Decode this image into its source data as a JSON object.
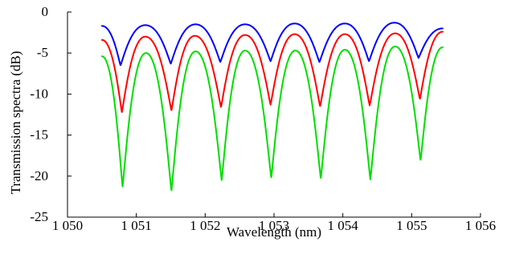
{
  "chart_data": {
    "type": "line",
    "title": "",
    "xlabel": "Wavelength (nm)",
    "ylabel": "Transmission spectra (dB)",
    "xlim": [
      1050,
      1056
    ],
    "ylim": [
      -25,
      0
    ],
    "x_ticks": [
      1050,
      1051,
      1052,
      1053,
      1054,
      1055,
      1056
    ],
    "x_tick_labels": [
      "1 050",
      "1 051",
      "1 052",
      "1 053",
      "1 054",
      "1 055",
      "1 056"
    ],
    "y_ticks": [
      0,
      -5,
      -10,
      -15,
      -20,
      -25
    ],
    "y_tick_labels": [
      "0",
      "-5",
      "-10",
      "-15",
      "-20",
      "-25"
    ],
    "grid": false,
    "legend": "none",
    "series": [
      {
        "color": "#0000ff",
        "x_start": 1050.5,
        "x_end": 1055.45,
        "minima": [
          {
            "x": 1050.77,
            "y": -6.5
          },
          {
            "x": 1051.5,
            "y": -6.3
          },
          {
            "x": 1052.22,
            "y": -6.1
          },
          {
            "x": 1052.95,
            "y": -6.0
          },
          {
            "x": 1053.66,
            "y": -6.1
          },
          {
            "x": 1054.38,
            "y": -6.0
          },
          {
            "x": 1055.1,
            "y": -5.6
          }
        ],
        "maxima": [
          {
            "x": 1050.5,
            "y": -1.7
          },
          {
            "x": 1051.13,
            "y": -1.6
          },
          {
            "x": 1051.86,
            "y": -1.5
          },
          {
            "x": 1052.58,
            "y": -1.5
          },
          {
            "x": 1053.3,
            "y": -1.4
          },
          {
            "x": 1054.03,
            "y": -1.4
          },
          {
            "x": 1054.75,
            "y": -1.3
          },
          {
            "x": 1055.45,
            "y": -2.0
          }
        ]
      },
      {
        "color": "#ff0000",
        "x_start": 1050.5,
        "x_end": 1055.45,
        "minima": [
          {
            "x": 1050.79,
            "y": -12.2
          },
          {
            "x": 1051.51,
            "y": -12.0
          },
          {
            "x": 1052.23,
            "y": -11.6
          },
          {
            "x": 1052.95,
            "y": -11.3
          },
          {
            "x": 1053.67,
            "y": -11.5
          },
          {
            "x": 1054.39,
            "y": -11.4
          },
          {
            "x": 1055.12,
            "y": -10.6
          }
        ],
        "maxima": [
          {
            "x": 1050.5,
            "y": -3.4
          },
          {
            "x": 1051.13,
            "y": -3.0
          },
          {
            "x": 1051.85,
            "y": -2.9
          },
          {
            "x": 1052.58,
            "y": -2.8
          },
          {
            "x": 1053.3,
            "y": -2.7
          },
          {
            "x": 1054.03,
            "y": -2.7
          },
          {
            "x": 1054.76,
            "y": -2.6
          },
          {
            "x": 1055.45,
            "y": -2.4
          }
        ]
      },
      {
        "color": "#00dd00",
        "x_start": 1050.5,
        "x_end": 1055.45,
        "minima": [
          {
            "x": 1050.8,
            "y": -21.3
          },
          {
            "x": 1051.51,
            "y": -21.8
          },
          {
            "x": 1052.24,
            "y": -20.5
          },
          {
            "x": 1052.96,
            "y": -20.2
          },
          {
            "x": 1053.68,
            "y": -20.3
          },
          {
            "x": 1054.4,
            "y": -20.4
          },
          {
            "x": 1055.13,
            "y": -18.1
          }
        ],
        "maxima": [
          {
            "x": 1050.5,
            "y": -5.4
          },
          {
            "x": 1051.14,
            "y": -5.0
          },
          {
            "x": 1051.86,
            "y": -4.8
          },
          {
            "x": 1052.58,
            "y": -4.7
          },
          {
            "x": 1053.31,
            "y": -4.7
          },
          {
            "x": 1054.03,
            "y": -4.6
          },
          {
            "x": 1054.76,
            "y": -4.2
          },
          {
            "x": 1055.45,
            "y": -4.3
          }
        ]
      }
    ]
  }
}
